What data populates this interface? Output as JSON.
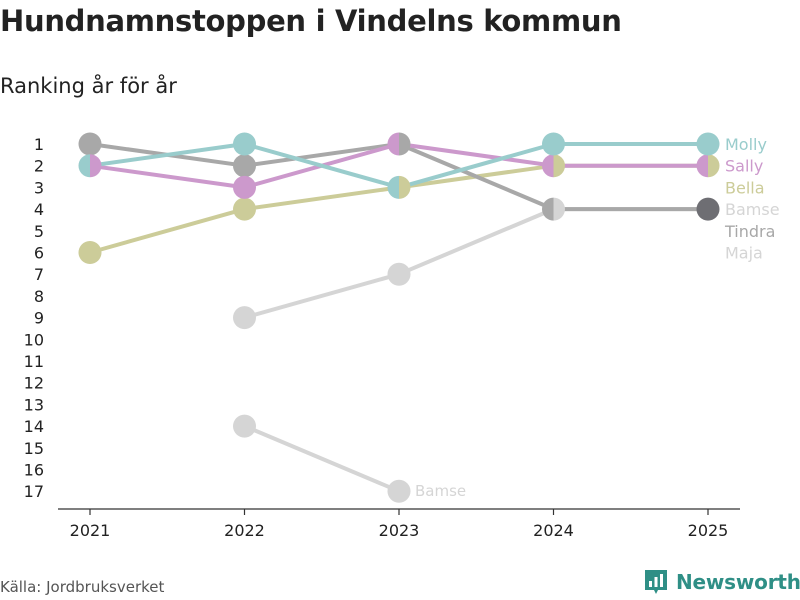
{
  "chart_data": {
    "type": "line",
    "title": "Hundnamnstoppen i Vindelns kommun",
    "subtitle": "Ranking år för år",
    "xlabel": "",
    "ylabel": "",
    "x": [
      "2021",
      "2022",
      "2023",
      "2024",
      "2025"
    ],
    "y_ticks": [
      "1",
      "2",
      "3",
      "4",
      "5",
      "6",
      "7",
      "8",
      "9",
      "10",
      "11",
      "12",
      "13",
      "14",
      "15",
      "16",
      "17"
    ],
    "ylim": [
      1,
      17
    ],
    "y_inverted": true,
    "series": [
      {
        "name": "Maja",
        "color": "#d5d5d5",
        "values": [
          null,
          9,
          7,
          4,
          4
        ],
        "end_label": "Maja"
      },
      {
        "name": "Bamse",
        "color": "#d5d5d5",
        "values": [
          null,
          14,
          17,
          null,
          null
        ],
        "end_label": "Bamse"
      },
      {
        "name": "Bella",
        "color": "#cccc99",
        "values": [
          6,
          4,
          3,
          2,
          2
        ],
        "end_label": "Bella"
      },
      {
        "name": "Tindra",
        "color": "#a8a8a8",
        "values": [
          1,
          2,
          1,
          4,
          4
        ],
        "end_label": "Tindra"
      },
      {
        "name": "Sally",
        "color": "#cc99cc",
        "values": [
          2,
          3,
          1,
          2,
          2
        ],
        "end_label": "Sally"
      },
      {
        "name": "Molly",
        "color": "#99cccc",
        "values": [
          2,
          1,
          3,
          1,
          1
        ],
        "end_label": "Molly"
      }
    ],
    "right_labels": [
      {
        "text": "Molly",
        "rank": 1,
        "color": "#99cccc"
      },
      {
        "text": "Sally",
        "rank": 2,
        "color": "#cc99cc"
      },
      {
        "text": "Bella",
        "rank": 3,
        "color": "#cccc99"
      },
      {
        "text": "Bamse",
        "rank": 4,
        "color": "#d5d5d5"
      },
      {
        "text": "Tindra",
        "rank": 5,
        "color": "#a8a8a8"
      },
      {
        "text": "Maja",
        "rank": 6,
        "color": "#d5d5d5"
      }
    ],
    "inline_labels": [
      {
        "text": "Bamse",
        "x_index": 2,
        "rank": 17,
        "color": "#d5d5d5"
      }
    ],
    "highlight_marker": {
      "x_index": 4,
      "rank": 4,
      "color": "#6e6e73"
    }
  },
  "footer": {
    "source": "Källa: Jordbruksverket",
    "brand": "Newsworthy",
    "brand_color": "#2f8f86"
  }
}
